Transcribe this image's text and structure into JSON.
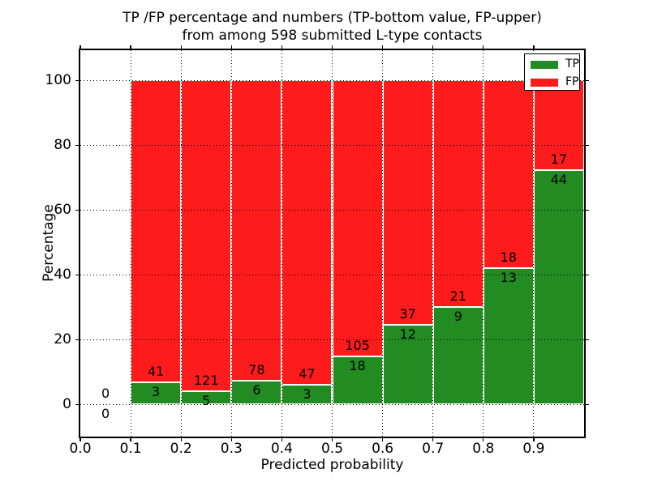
{
  "chart_data": {
    "type": "bar",
    "stacked": true,
    "title": "TP /FP percentage and numbers (TP-bottom value, FP-upper) from among 598 submitted L-type contacts",
    "title_line1": "TP /FP percentage and numbers (TP-bottom value, FP-upper)",
    "title_line2": "from among 598 submitted L-type contacts",
    "xlabel": "Predicted probability",
    "ylabel": "Percentage",
    "xlim": [
      0.0,
      1.0
    ],
    "ylim": [
      -10,
      109.3
    ],
    "grid": "dotted black, on",
    "legend_position": "upper right",
    "x_ticks": [
      "0.0",
      "0.1",
      "0.2",
      "0.3",
      "0.4",
      "0.5",
      "0.6",
      "0.7",
      "0.8",
      "0.9"
    ],
    "y_ticks": [
      0,
      20,
      40,
      60,
      80,
      100
    ],
    "legend": [
      {
        "label": "TP",
        "color": "#228b22"
      },
      {
        "label": "FP",
        "color": "#fd1b1b"
      }
    ],
    "bin_width": 0.1,
    "bins": [
      {
        "start": 0.0,
        "end": 0.1,
        "tp": 0,
        "fp": 0
      },
      {
        "start": 0.1,
        "end": 0.2,
        "tp": 3,
        "fp": 41
      },
      {
        "start": 0.2,
        "end": 0.3,
        "tp": 5,
        "fp": 121
      },
      {
        "start": 0.3,
        "end": 0.4,
        "tp": 6,
        "fp": 78
      },
      {
        "start": 0.4,
        "end": 0.5,
        "tp": 3,
        "fp": 47
      },
      {
        "start": 0.5,
        "end": 0.6,
        "tp": 18,
        "fp": 105
      },
      {
        "start": 0.6,
        "end": 0.7,
        "tp": 12,
        "fp": 37
      },
      {
        "start": 0.7,
        "end": 0.8,
        "tp": 9,
        "fp": 21
      },
      {
        "start": 0.8,
        "end": 0.9,
        "tp": 13,
        "fp": 18
      },
      {
        "start": 0.9,
        "end": 1.0,
        "tp": 44,
        "fp": 17
      }
    ],
    "total_contacts": 598
  },
  "colors": {
    "tp": "#228b22",
    "fp": "#fd1b1b",
    "grid": "#000000",
    "spine": "#000000",
    "background": "#ffffff",
    "bar_edge": "#ffffff"
  }
}
